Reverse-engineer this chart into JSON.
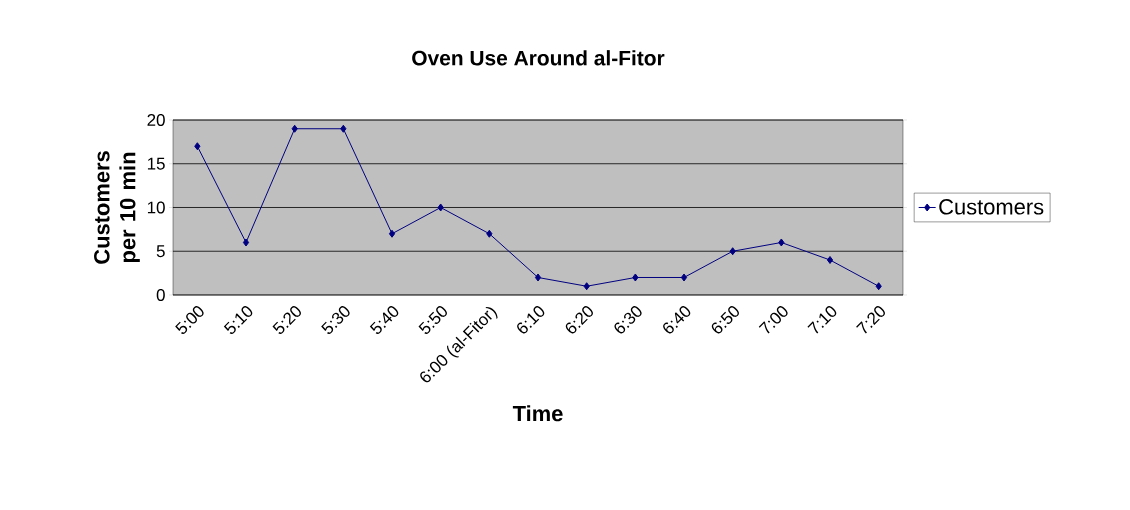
{
  "chart_data": {
    "type": "line",
    "title": "Oven Use Around al-Fitor",
    "xlabel": "Time",
    "ylabel": "Customers per 10 min",
    "categories": [
      "5:00",
      "5:10",
      "5:20",
      "5:30",
      "5:40",
      "5:50",
      "6:00 (al-Fitor)",
      "6:10",
      "6:20",
      "6:30",
      "6:40",
      "6:50",
      "7:00",
      "7:10",
      "7:20"
    ],
    "series": [
      {
        "name": "Customers",
        "color": "#000080",
        "values": [
          17,
          6,
          19,
          19,
          7,
          10,
          7,
          2,
          1,
          2,
          2,
          5,
          6,
          4,
          1
        ]
      }
    ],
    "ylim": [
      0,
      20
    ],
    "yticks": [
      0,
      5,
      10,
      15,
      20
    ],
    "grid": "y",
    "legend": "right",
    "marker": "diamond",
    "line_style": "solid"
  }
}
